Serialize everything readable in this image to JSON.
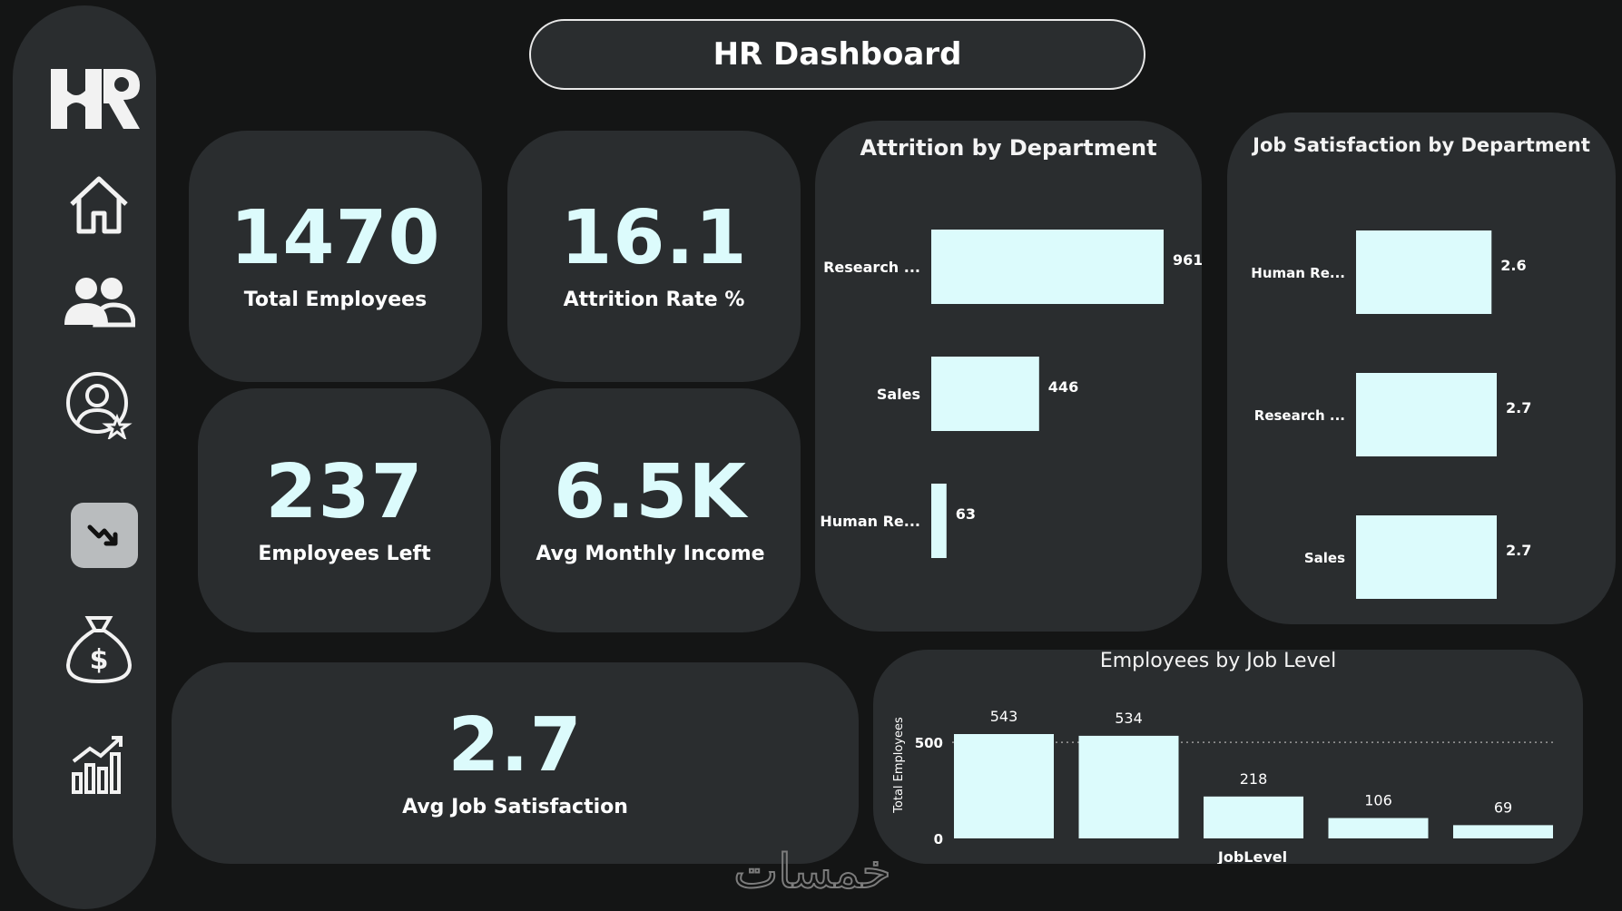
{
  "header": {
    "title": "HR Dashboard"
  },
  "sidebar": {
    "logo_text": "HR",
    "items": [
      {
        "icon": "home-icon"
      },
      {
        "icon": "users-icon"
      },
      {
        "icon": "user-star-icon"
      },
      {
        "icon": "trend-down-icon",
        "active": true
      },
      {
        "icon": "money-bag-icon"
      },
      {
        "icon": "growth-chart-icon"
      }
    ]
  },
  "kpis": {
    "total_employees": {
      "value": "1470",
      "label": "Total Employees"
    },
    "attrition_rate": {
      "value": "16.1",
      "label": "Attrition Rate %"
    },
    "employees_left": {
      "value": "237",
      "label": "Employees Left"
    },
    "avg_monthly_income": {
      "value": "6.5K",
      "label": "Avg Monthly Income"
    },
    "avg_job_satisfaction": {
      "value": "2.7",
      "label": "Avg Job Satisfaction"
    }
  },
  "colors": {
    "bar": "#dcfbfc",
    "card": "#2a2d2f",
    "background": "#141515"
  },
  "watermark_text": "خمسات",
  "chart_data": [
    {
      "type": "bar",
      "orientation": "horizontal",
      "title": "Attrition by Department",
      "categories": [
        "Research ...",
        "Sales",
        "Human Re..."
      ],
      "values": [
        961,
        446,
        63
      ],
      "xlim": [
        0,
        961
      ]
    },
    {
      "type": "bar",
      "orientation": "horizontal",
      "title": "Job Satisfaction by Department",
      "categories": [
        "Human Re...",
        "Research ...",
        "Sales"
      ],
      "values": [
        2.6,
        2.7,
        2.7
      ],
      "xlim": [
        0,
        2.7
      ]
    },
    {
      "type": "bar",
      "orientation": "vertical",
      "title": "Employees by Job Level",
      "xlabel": "JobLevel",
      "ylabel": "Total Employees",
      "values": [
        543,
        534,
        218,
        106,
        69
      ],
      "yticks": [
        0,
        500
      ],
      "ylim": [
        0,
        543
      ],
      "grid": true
    }
  ]
}
